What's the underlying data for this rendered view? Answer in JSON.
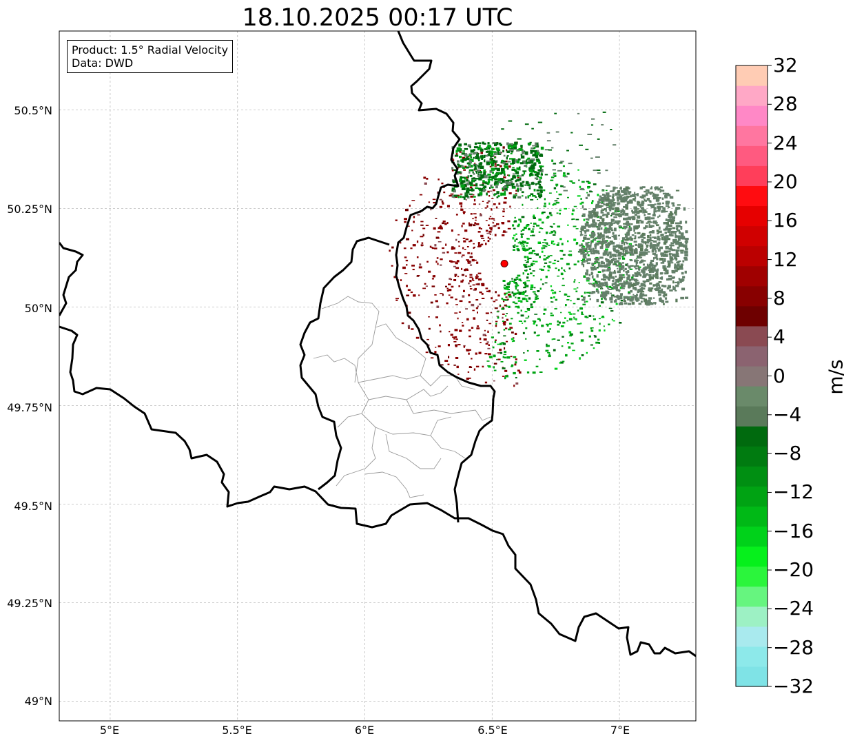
{
  "title": "18.10.2025 00:17 UTC",
  "info": {
    "product": "Product: 1.5° Radial Velocity",
    "source": "Data: DWD"
  },
  "axes": {
    "lat_ticks": [
      "50.5°N",
      "50.25°N",
      "50°N",
      "49.75°N",
      "49.5°N",
      "49.25°N",
      "49°N"
    ],
    "lon_ticks": [
      "5°E",
      "5.5°E",
      "6°E",
      "6.5°E",
      "7°E"
    ]
  },
  "map_extent": {
    "lon_min": 4.8,
    "lon_max": 7.3,
    "lat_min": 48.95,
    "lat_max": 50.7
  },
  "radar_site": {
    "lon": 6.548,
    "lat": 50.11
  },
  "colorbar": {
    "unit": "m/s",
    "min": -32,
    "max": 32,
    "tick_labels": [
      "32",
      "28",
      "24",
      "20",
      "16",
      "12",
      "8",
      "4",
      "0",
      "−4",
      "−8",
      "−12",
      "−16",
      "−20",
      "−24",
      "−28",
      "−32"
    ],
    "colors": [
      "#7fe3e6",
      "#8de9ea",
      "#a9eaee",
      "#9df1c4",
      "#66f57f",
      "#2bf53c",
      "#06f01c",
      "#00d21a",
      "#00b916",
      "#00a313",
      "#008f12",
      "#007b10",
      "#006a0e",
      "#5a7a5a",
      "#6a8a6a",
      "#877676",
      "#8b6370",
      "#8a4a52",
      "#6e0000",
      "#880000",
      "#a00000",
      "#bb0000",
      "#d00000",
      "#e60000",
      "#ff0c10",
      "#ff3e5a",
      "#ff5a80",
      "#ff76a0",
      "#ff88c6",
      "#ffa8c6",
      "#ffccb4"
    ]
  },
  "colors": {
    "green": "#00a313",
    "dark_green": "#006a0e",
    "gray_green": "#64806a",
    "dark_red": "#880000",
    "maroon": "#6e0000"
  }
}
